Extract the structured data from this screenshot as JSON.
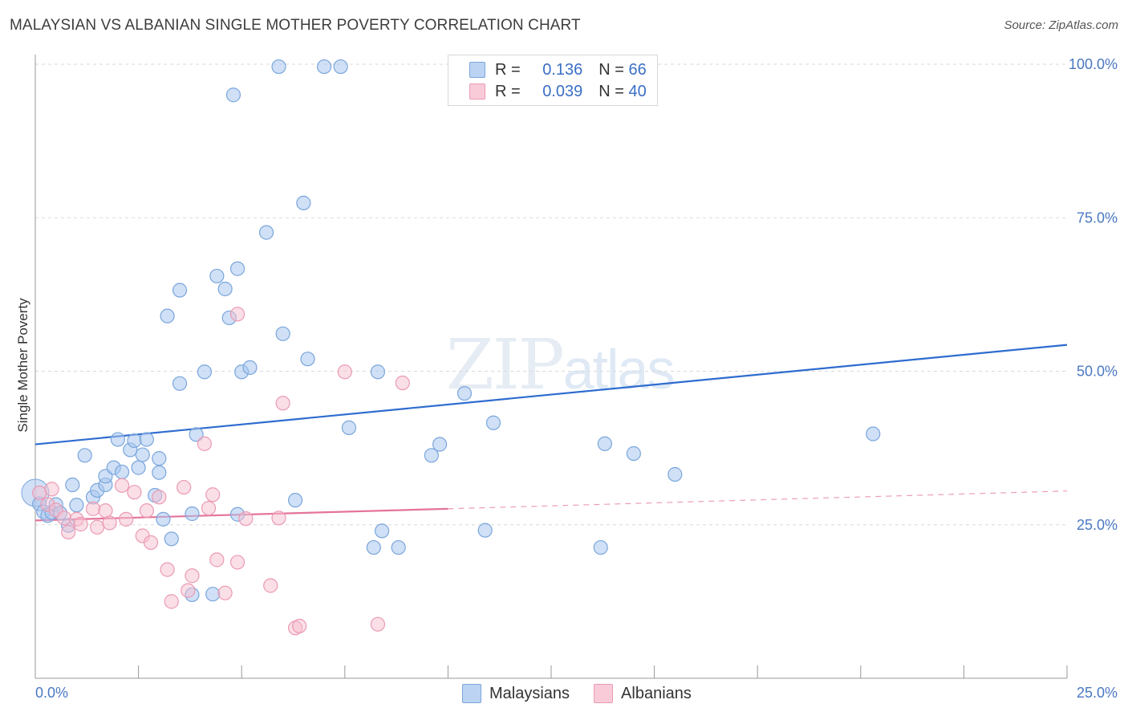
{
  "title": "MALAYSIAN VS ALBANIAN SINGLE MOTHER POVERTY CORRELATION CHART",
  "source": "Source: ZipAtlas.com",
  "watermark": {
    "zip": "ZIP",
    "atlas": "atlas"
  },
  "legend": {
    "rows": [
      {
        "r_label": "R =",
        "r_value": "0.136",
        "n_label": "N =",
        "n_value": "66"
      },
      {
        "r_label": "R =",
        "r_value": "0.039",
        "n_label": "N =",
        "n_value": "40"
      }
    ]
  },
  "bottom_legend": {
    "malaysians": "Malaysians",
    "albanians": "Albanians"
  },
  "colors": {
    "blue_fill": "#a9c7ef",
    "blue_stroke": "#7aa6dc",
    "blue_line": "#2e6ccf",
    "pink_fill": "#f6bfd0",
    "pink_stroke": "#eb9ab3",
    "pink_line": "#e5739a"
  },
  "chart_data": {
    "type": "scatter",
    "title": "MALAYSIAN VS ALBANIAN SINGLE MOTHER POVERTY CORRELATION CHART",
    "xlabel": "",
    "ylabel": "Single Mother Poverty",
    "xlim": [
      0,
      25
    ],
    "ylim": [
      0,
      100
    ],
    "x_ticks": [
      "0.0%",
      "25.0%"
    ],
    "y_ticks": [
      "25.0%",
      "50.0%",
      "75.0%",
      "100.0%"
    ],
    "series": [
      {
        "name": "Malaysians",
        "r": 0.136,
        "n": 66,
        "trend": {
          "x": [
            0,
            25
          ],
          "y": [
            38.1,
            54.3
          ]
        },
        "points": [
          [
            0.1,
            28.4
          ],
          [
            0.2,
            27.1
          ],
          [
            0.3,
            26.5
          ],
          [
            0.4,
            27.0
          ],
          [
            0.5,
            28.3
          ],
          [
            0.6,
            26.9
          ],
          [
            0.8,
            24.9
          ],
          [
            0.9,
            31.5
          ],
          [
            1.0,
            28.2
          ],
          [
            1.2,
            36.3
          ],
          [
            1.4,
            29.5
          ],
          [
            1.5,
            30.6
          ],
          [
            1.7,
            31.5
          ],
          [
            1.7,
            32.9
          ],
          [
            1.9,
            34.3
          ],
          [
            2.0,
            38.9
          ],
          [
            2.1,
            33.6
          ],
          [
            2.3,
            37.2
          ],
          [
            2.4,
            38.7
          ],
          [
            2.5,
            34.3
          ],
          [
            2.6,
            36.4
          ],
          [
            2.7,
            38.9
          ],
          [
            2.9,
            29.8
          ],
          [
            3.0,
            33.5
          ],
          [
            3.1,
            25.9
          ],
          [
            3.2,
            59.0
          ],
          [
            3.3,
            22.7
          ],
          [
            3.5,
            63.2
          ],
          [
            3.5,
            48.0
          ],
          [
            3.8,
            13.6
          ],
          [
            3.8,
            26.8
          ],
          [
            3.9,
            39.7
          ],
          [
            4.1,
            49.9
          ],
          [
            4.3,
            13.7
          ],
          [
            4.4,
            65.5
          ],
          [
            4.6,
            63.4
          ],
          [
            4.7,
            58.7
          ],
          [
            4.8,
            95.0
          ],
          [
            4.9,
            26.7
          ],
          [
            5.0,
            49.9
          ],
          [
            5.2,
            50.6
          ],
          [
            5.6,
            72.6
          ],
          [
            5.9,
            99.6
          ],
          [
            6.0,
            56.1
          ],
          [
            6.5,
            77.4
          ],
          [
            6.6,
            52.0
          ],
          [
            7.0,
            99.6
          ],
          [
            7.4,
            99.6
          ],
          [
            7.6,
            40.8
          ],
          [
            8.2,
            21.3
          ],
          [
            8.3,
            49.9
          ],
          [
            8.4,
            24.0
          ],
          [
            8.8,
            21.3
          ],
          [
            9.6,
            36.3
          ],
          [
            9.8,
            38.1
          ],
          [
            10.4,
            46.4
          ],
          [
            10.9,
            24.1
          ],
          [
            11.1,
            41.6
          ],
          [
            13.7,
            21.3
          ],
          [
            13.8,
            38.2
          ],
          [
            14.5,
            36.6
          ],
          [
            15.5,
            33.2
          ],
          [
            20.3,
            39.8
          ],
          [
            4.9,
            66.7
          ],
          [
            3.0,
            35.8
          ],
          [
            6.3,
            29.0
          ]
        ]
      },
      {
        "name": "Albanians",
        "r": 0.039,
        "n": 40,
        "trend": {
          "x": [
            0,
            10
          ],
          "y": [
            25.7,
            27.6
          ]
        },
        "trend_dashed": {
          "x": [
            10,
            25
          ],
          "y": [
            27.6,
            30.5
          ]
        },
        "points": [
          [
            0.1,
            30.2
          ],
          [
            0.3,
            28.3
          ],
          [
            0.4,
            30.8
          ],
          [
            0.5,
            27.4
          ],
          [
            0.7,
            26.1
          ],
          [
            0.8,
            23.8
          ],
          [
            1.0,
            25.9
          ],
          [
            1.1,
            25.1
          ],
          [
            1.4,
            27.6
          ],
          [
            1.5,
            24.6
          ],
          [
            1.7,
            27.3
          ],
          [
            1.8,
            25.3
          ],
          [
            2.1,
            31.4
          ],
          [
            2.2,
            25.9
          ],
          [
            2.4,
            30.3
          ],
          [
            2.6,
            23.2
          ],
          [
            2.7,
            27.3
          ],
          [
            2.8,
            22.1
          ],
          [
            3.0,
            29.5
          ],
          [
            3.2,
            17.7
          ],
          [
            3.3,
            12.5
          ],
          [
            3.6,
            31.1
          ],
          [
            3.7,
            14.3
          ],
          [
            3.8,
            16.7
          ],
          [
            4.1,
            38.2
          ],
          [
            4.2,
            27.7
          ],
          [
            4.3,
            29.9
          ],
          [
            4.4,
            19.3
          ],
          [
            4.6,
            13.9
          ],
          [
            4.9,
            59.3
          ],
          [
            4.9,
            18.9
          ],
          [
            5.1,
            26.0
          ],
          [
            5.7,
            15.1
          ],
          [
            5.9,
            26.1
          ],
          [
            6.0,
            44.8
          ],
          [
            6.3,
            8.2
          ],
          [
            6.4,
            8.5
          ],
          [
            7.5,
            49.9
          ],
          [
            8.3,
            8.8
          ],
          [
            8.9,
            48.1
          ]
        ]
      }
    ]
  }
}
